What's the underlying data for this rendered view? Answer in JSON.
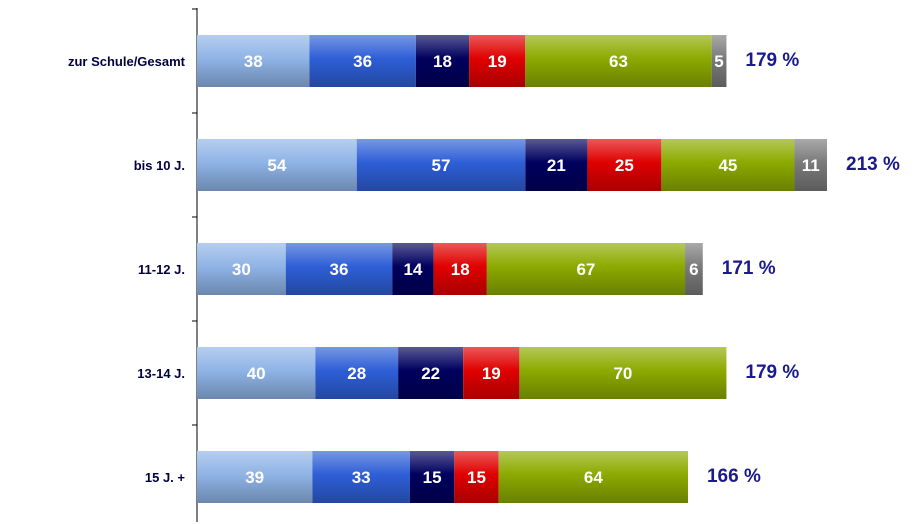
{
  "chart_data": {
    "type": "bar",
    "orientation": "horizontal",
    "stacked": true,
    "categories": [
      "zur Schule/Gesamt",
      "bis 10 J.",
      "11-12 J.",
      "13-14 J.",
      "15 J. +"
    ],
    "series": [
      {
        "values": [
          38,
          54,
          30,
          40,
          39
        ],
        "color": "#8fb4e6"
      },
      {
        "values": [
          36,
          57,
          36,
          28,
          33
        ],
        "color": "#2e5fd6"
      },
      {
        "values": [
          18,
          21,
          14,
          22,
          15
        ],
        "color": "#00005e"
      },
      {
        "values": [
          19,
          25,
          18,
          19,
          15
        ],
        "color": "#e00000"
      },
      {
        "values": [
          63,
          45,
          67,
          70,
          64
        ],
        "color": "#8caa00"
      },
      {
        "values": [
          5,
          11,
          6,
          null,
          null
        ],
        "color": "#7a7a7a"
      }
    ],
    "totals": [
      "179 %",
      "213 %",
      "171 %",
      "179 %",
      "166 %"
    ],
    "xlim": [
      0,
      213
    ],
    "grid": false,
    "legend": "none"
  }
}
